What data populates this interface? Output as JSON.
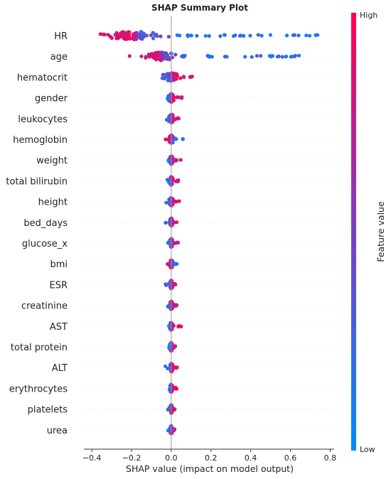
{
  "chart_data": {
    "type": "scatter",
    "title": "SHAP Summary Plot",
    "xlabel": "SHAP value (impact on model output)",
    "xlim": [
      -0.44,
      0.82
    ],
    "xticks": [
      -0.4,
      -0.2,
      0.0,
      0.2,
      0.4,
      0.6,
      0.8
    ],
    "xtick_labels": [
      "−0.4",
      "−0.2",
      "0.0",
      "0.2",
      "0.4",
      "0.6",
      "0.8"
    ],
    "features": [
      {
        "name": "HR",
        "min": -0.38,
        "max": 0.78,
        "center": -0.18,
        "spread": 0.2,
        "high_side": "negative"
      },
      {
        "name": "age",
        "min": -0.22,
        "max": 0.65,
        "center": -0.05,
        "spread": 0.1,
        "high_side": "negative"
      },
      {
        "name": "hematocrit",
        "min": -0.06,
        "max": 0.14,
        "center": 0.0,
        "spread": 0.05,
        "high_side": "positive"
      },
      {
        "name": "gender",
        "min": -0.02,
        "max": 0.06,
        "center": 0.0,
        "spread": 0.02,
        "high_side": "positive"
      },
      {
        "name": "leukocytes",
        "min": -0.03,
        "max": 0.04,
        "center": 0.0,
        "spread": 0.02,
        "high_side": "positive"
      },
      {
        "name": "hemoglobin",
        "min": -0.03,
        "max": 0.06,
        "center": 0.0,
        "spread": 0.015,
        "high_side": "negative"
      },
      {
        "name": "weight",
        "min": -0.02,
        "max": 0.05,
        "center": 0.0,
        "spread": 0.012,
        "high_side": "positive"
      },
      {
        "name": "total bilirubin",
        "min": -0.02,
        "max": 0.04,
        "center": 0.0,
        "spread": 0.012,
        "high_side": "positive"
      },
      {
        "name": "height",
        "min": -0.03,
        "max": 0.04,
        "center": 0.0,
        "spread": 0.012,
        "high_side": "positive"
      },
      {
        "name": "bed_days",
        "min": -0.03,
        "max": 0.03,
        "center": 0.0,
        "spread": 0.01,
        "high_side": "positive"
      },
      {
        "name": "glucose_x",
        "min": -0.02,
        "max": 0.04,
        "center": 0.0,
        "spread": 0.01,
        "high_side": "positive"
      },
      {
        "name": "bmi",
        "min": -0.02,
        "max": 0.03,
        "center": 0.0,
        "spread": 0.01,
        "high_side": "negative"
      },
      {
        "name": "ESR",
        "min": -0.04,
        "max": 0.03,
        "center": 0.0,
        "spread": 0.01,
        "high_side": "positive"
      },
      {
        "name": "creatinine",
        "min": -0.02,
        "max": 0.03,
        "center": 0.0,
        "spread": 0.01,
        "high_side": "positive"
      },
      {
        "name": "AST",
        "min": -0.02,
        "max": 0.05,
        "center": 0.0,
        "spread": 0.01,
        "high_side": "positive"
      },
      {
        "name": "total protein",
        "min": -0.02,
        "max": 0.03,
        "center": 0.0,
        "spread": 0.01,
        "high_side": "positive"
      },
      {
        "name": "ALT",
        "min": -0.03,
        "max": 0.03,
        "center": 0.0,
        "spread": 0.01,
        "high_side": "positive"
      },
      {
        "name": "erythrocytes",
        "min": -0.02,
        "max": 0.03,
        "center": 0.0,
        "spread": 0.008,
        "high_side": "positive"
      },
      {
        "name": "platelets",
        "min": -0.02,
        "max": 0.02,
        "center": 0.0,
        "spread": 0.008,
        "high_side": "positive"
      },
      {
        "name": "urea",
        "min": -0.02,
        "max": 0.02,
        "center": 0.0,
        "spread": 0.008,
        "high_side": "positive"
      }
    ],
    "colorbar": {
      "label": "Feature value",
      "high_label": "High",
      "low_label": "Low",
      "high_color": "#ff0052",
      "low_color": "#008bfb"
    },
    "grid": false,
    "zero_line": true
  }
}
